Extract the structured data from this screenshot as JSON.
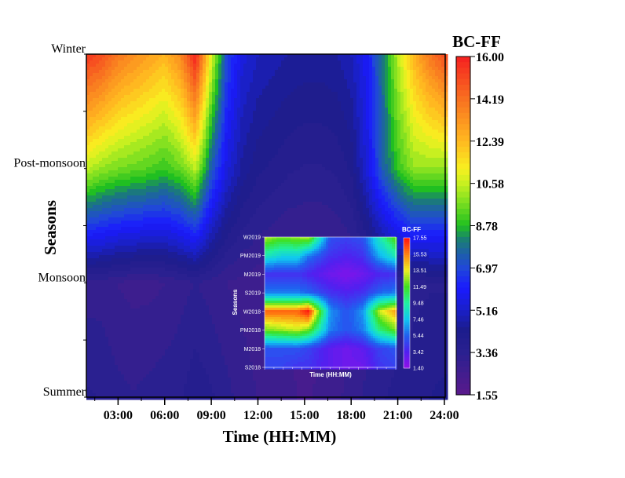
{
  "chart_data": [
    {
      "type": "heatmap",
      "xlabel": "Time (HH:MM)",
      "ylabel": "Seasons",
      "x_hours": [
        1,
        2,
        3,
        4,
        5,
        6,
        7,
        8,
        9,
        10,
        11,
        12,
        13,
        14,
        15,
        16,
        17,
        18,
        19,
        20,
        21,
        22,
        23,
        24
      ],
      "x_tick_labels": [
        "03:00",
        "06:00",
        "09:00",
        "12:00",
        "15:00",
        "18:00",
        "21:00",
        "24:00"
      ],
      "x_tick_hours": [
        3,
        6,
        9,
        12,
        15,
        18,
        21,
        24
      ],
      "xlim": [
        1,
        24
      ],
      "categories": [
        "Summer",
        "Monsoon",
        "Post-monsoon",
        "Winter"
      ],
      "values": [
        [
          3.6,
          3.5,
          3.3,
          3.2,
          3.3,
          3.4,
          3.5,
          3.8,
          3.6,
          3.3,
          3.0,
          2.8,
          2.6,
          2.5,
          2.4,
          2.5,
          2.7,
          3.0,
          3.3,
          3.5,
          3.7,
          3.8,
          3.9,
          4.0
        ],
        [
          3.0,
          3.0,
          2.8,
          2.7,
          2.7,
          2.8,
          3.0,
          3.2,
          3.0,
          2.8,
          2.7,
          2.6,
          2.5,
          2.4,
          2.4,
          2.4,
          2.5,
          2.6,
          2.8,
          3.0,
          3.2,
          3.4,
          3.5,
          3.5
        ],
        [
          10.5,
          10.0,
          9.7,
          9.5,
          9.3,
          9.0,
          9.5,
          10.5,
          7.5,
          5.5,
          4.5,
          4.0,
          3.8,
          3.6,
          3.5,
          3.5,
          3.6,
          4.0,
          5.5,
          7.5,
          9.0,
          10.0,
          10.0,
          10.0
        ],
        [
          15.5,
          15.0,
          14.0,
          13.5,
          13.0,
          12.5,
          13.5,
          16.0,
          11.0,
          7.0,
          5.5,
          5.0,
          4.8,
          4.6,
          4.5,
          4.5,
          4.6,
          5.0,
          6.0,
          8.0,
          10.5,
          12.5,
          14.0,
          15.0
        ]
      ],
      "colorbar": {
        "title": "BC-FF",
        "range": [
          1.55,
          16.0
        ],
        "tick_labels": [
          "16.00",
          "14.19",
          "12.39",
          "10.58",
          "8.78",
          "6.97",
          "5.16",
          "3.36",
          "1.55"
        ],
        "colors": [
          [
            1.55,
            "#5a1a8c"
          ],
          [
            3.36,
            "#2a2090"
          ],
          [
            4.3,
            "#1c1c8c"
          ],
          [
            5.16,
            "#1a20c8"
          ],
          [
            6.1,
            "#1a1aff"
          ],
          [
            6.97,
            "#2048d8"
          ],
          [
            7.6,
            "#1e60a8"
          ],
          [
            8.2,
            "#1a8070"
          ],
          [
            8.78,
            "#20c020"
          ],
          [
            9.8,
            "#80e020"
          ],
          [
            10.58,
            "#c8f020"
          ],
          [
            11.2,
            "#f8f020"
          ],
          [
            12.39,
            "#ffb820"
          ],
          [
            14.19,
            "#f87020"
          ],
          [
            16.0,
            "#f52020"
          ]
        ]
      }
    },
    {
      "type": "heatmap",
      "xlabel": "Time (HH:MM)",
      "ylabel": "Seasons",
      "x_hours": [
        0,
        3,
        6,
        8,
        12,
        15,
        18,
        21,
        24
      ],
      "xlim": [
        0,
        24
      ],
      "categories": [
        "S2018",
        "M2018",
        "PM2018",
        "W2018",
        "S2019",
        "M2019",
        "PM2019",
        "W2019"
      ],
      "values": [
        [
          4.5,
          4.5,
          4.0,
          4.0,
          3.0,
          2.5,
          2.5,
          4.0,
          4.5
        ],
        [
          5.0,
          5.0,
          5.0,
          4.5,
          3.0,
          2.5,
          3.0,
          4.5,
          5.0
        ],
        [
          12.0,
          12.5,
          13.0,
          12.0,
          6.0,
          5.0,
          6.0,
          10.0,
          12.0
        ],
        [
          16.0,
          16.0,
          16.0,
          17.5,
          6.5,
          5.0,
          6.5,
          13.0,
          15.0
        ],
        [
          6.0,
          6.0,
          6.0,
          5.5,
          4.0,
          3.5,
          4.0,
          5.5,
          6.0
        ],
        [
          4.0,
          4.0,
          4.0,
          3.5,
          2.5,
          2.0,
          2.5,
          3.5,
          4.0
        ],
        [
          9.0,
          8.0,
          8.0,
          6.0,
          4.0,
          3.5,
          4.0,
          7.0,
          9.0
        ],
        [
          13.0,
          12.0,
          12.5,
          13.0,
          5.0,
          4.5,
          5.0,
          9.0,
          12.0
        ]
      ],
      "colorbar": {
        "title": "BC-FF",
        "range": [
          1.4,
          17.55
        ],
        "tick_labels": [
          "17.55",
          "15.53",
          "13.51",
          "11.49",
          "9.48",
          "7.46",
          "5.44",
          "3.42",
          "1.40"
        ],
        "colors": [
          [
            1.4,
            "#9010e8"
          ],
          [
            3.42,
            "#5020f0"
          ],
          [
            5.44,
            "#2060f0"
          ],
          [
            7.46,
            "#10c8f0"
          ],
          [
            9.48,
            "#20f0a0"
          ],
          [
            11.49,
            "#40e020"
          ],
          [
            13.51,
            "#f0f020"
          ],
          [
            15.53,
            "#ff8010"
          ],
          [
            17.55,
            "#ff1010"
          ]
        ]
      }
    }
  ]
}
